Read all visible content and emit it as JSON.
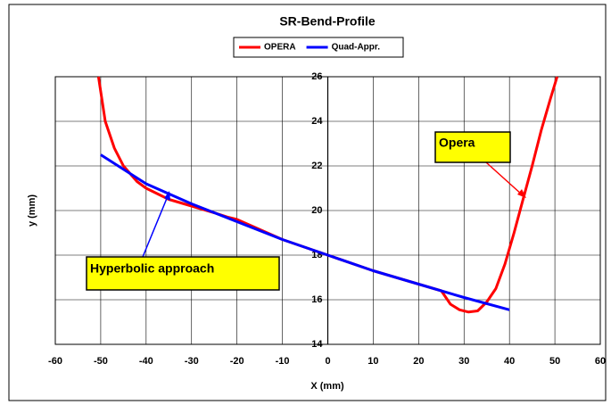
{
  "chart_data": {
    "type": "line",
    "title": "SR-Bend-Profile",
    "x_label": "X (mm)",
    "y_label": "y (mm)",
    "xlim": [
      -60,
      60
    ],
    "xticks": [
      -60,
      -50,
      -40,
      -30,
      -20,
      -10,
      0,
      10,
      20,
      30,
      40,
      50,
      60
    ],
    "ylim": [
      14,
      26
    ],
    "yticks": [
      14,
      16,
      18,
      20,
      22,
      24,
      26
    ],
    "grid": true,
    "legend": "top",
    "series": [
      {
        "name": "OPERA",
        "color": "#ff0000",
        "x": [
          -50.5,
          -49,
          -47,
          -45,
          -42,
          -40,
          -35,
          -30,
          -25,
          -22,
          -20,
          -10,
          0,
          10,
          20,
          25,
          27,
          29,
          31,
          33,
          35,
          37,
          39,
          41,
          43,
          45,
          47,
          49,
          50.5
        ],
        "values": [
          26,
          24,
          22.8,
          22,
          21.3,
          21,
          20.5,
          20.2,
          19.9,
          19.7,
          19.6,
          18.7,
          18,
          17.3,
          16.7,
          16.4,
          15.8,
          15.55,
          15.45,
          15.5,
          15.9,
          16.5,
          17.6,
          19,
          20.5,
          22,
          23.6,
          25,
          26
        ]
      },
      {
        "name": "Quad-Appr.",
        "color": "#0000ff",
        "x": [
          -50,
          -40,
          -30,
          -20,
          -10,
          0,
          10,
          20,
          30,
          40
        ],
        "values": [
          22.5,
          21.2,
          20.3,
          19.5,
          18.7,
          18,
          17.3,
          16.7,
          16.1,
          15.55
        ]
      }
    ],
    "annotations": [
      "Opera",
      "Hyperbolic approach"
    ]
  }
}
